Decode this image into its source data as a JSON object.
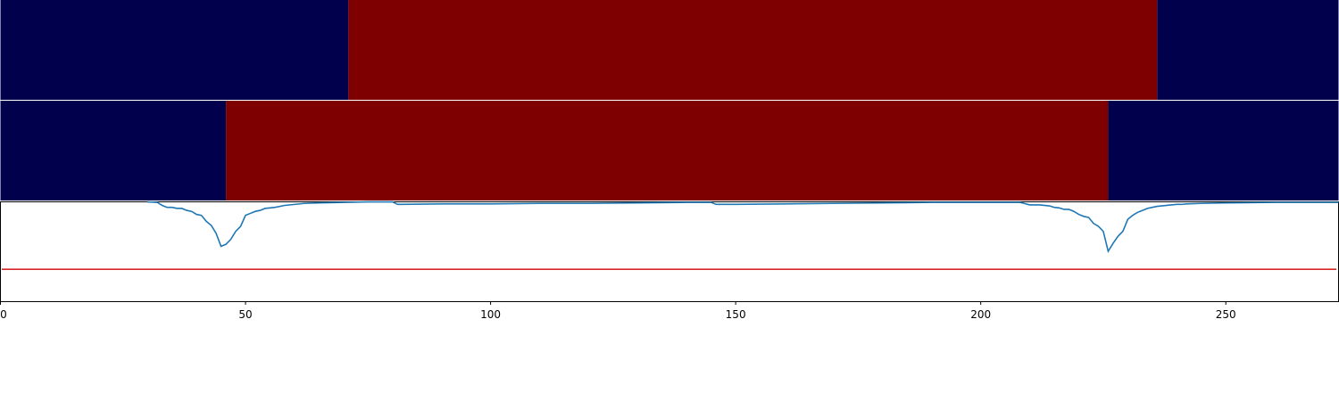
{
  "chart_data": {
    "type": "line",
    "xlim": [
      0,
      273
    ],
    "x_ticks": [
      0,
      50,
      100,
      150,
      200,
      250
    ],
    "x_tick_labels": [
      "0",
      "50",
      "100",
      "150",
      "200",
      "250"
    ],
    "ylim": [
      0,
      1
    ],
    "grid": false,
    "title": "",
    "xlabel": "",
    "ylabel": "",
    "segment_tracks": [
      {
        "segments": [
          {
            "start": 0,
            "end": 71,
            "state": 0
          },
          {
            "start": 71,
            "end": 236,
            "state": 1
          },
          {
            "start": 236,
            "end": 273,
            "state": 0
          }
        ]
      },
      {
        "segments": [
          {
            "start": 0,
            "end": 46,
            "state": 0
          },
          {
            "start": 46,
            "end": 226,
            "state": 1
          },
          {
            "start": 226,
            "end": 273,
            "state": 0
          }
        ]
      }
    ],
    "state_colors": {
      "0": "#00004c",
      "1": "#7f0000"
    },
    "threshold": {
      "y": 0.32,
      "color": "#d62728"
    },
    "series": [
      {
        "color": "#1f77b4",
        "x": [
          30,
          32,
          33,
          34,
          35,
          36,
          37,
          38,
          39,
          40,
          41,
          42,
          43,
          44,
          45,
          46,
          47,
          48,
          49,
          50,
          51,
          52,
          53,
          54,
          55,
          56,
          57,
          58,
          60,
          62,
          65,
          70,
          75,
          80,
          81,
          82,
          90,
          100,
          110,
          120,
          130,
          140,
          145,
          146,
          150,
          160,
          170,
          180,
          190,
          200,
          208,
          210,
          212,
          214,
          215,
          216,
          217,
          218,
          219,
          220,
          221,
          222,
          223,
          224,
          225,
          226,
          227,
          228,
          229,
          230,
          231,
          232,
          233,
          234,
          235,
          236,
          238,
          240,
          241,
          242,
          245,
          250,
          260,
          273
        ],
        "y": [
          0.995,
          0.99,
          0.96,
          0.94,
          0.94,
          0.93,
          0.93,
          0.91,
          0.9,
          0.87,
          0.86,
          0.8,
          0.76,
          0.68,
          0.55,
          0.57,
          0.62,
          0.7,
          0.75,
          0.86,
          0.88,
          0.9,
          0.91,
          0.93,
          0.935,
          0.94,
          0.95,
          0.96,
          0.97,
          0.98,
          0.985,
          0.99,
          0.995,
          0.995,
          0.97,
          0.97,
          0.975,
          0.975,
          0.98,
          0.98,
          0.985,
          0.99,
          0.99,
          0.97,
          0.97,
          0.975,
          0.98,
          0.985,
          0.99,
          0.99,
          0.99,
          0.965,
          0.965,
          0.955,
          0.94,
          0.935,
          0.92,
          0.92,
          0.9,
          0.87,
          0.85,
          0.84,
          0.78,
          0.75,
          0.7,
          0.5,
          0.58,
          0.65,
          0.7,
          0.82,
          0.86,
          0.89,
          0.91,
          0.93,
          0.94,
          0.95,
          0.96,
          0.97,
          0.97,
          0.975,
          0.98,
          0.985,
          0.99,
          0.99
        ]
      }
    ]
  }
}
